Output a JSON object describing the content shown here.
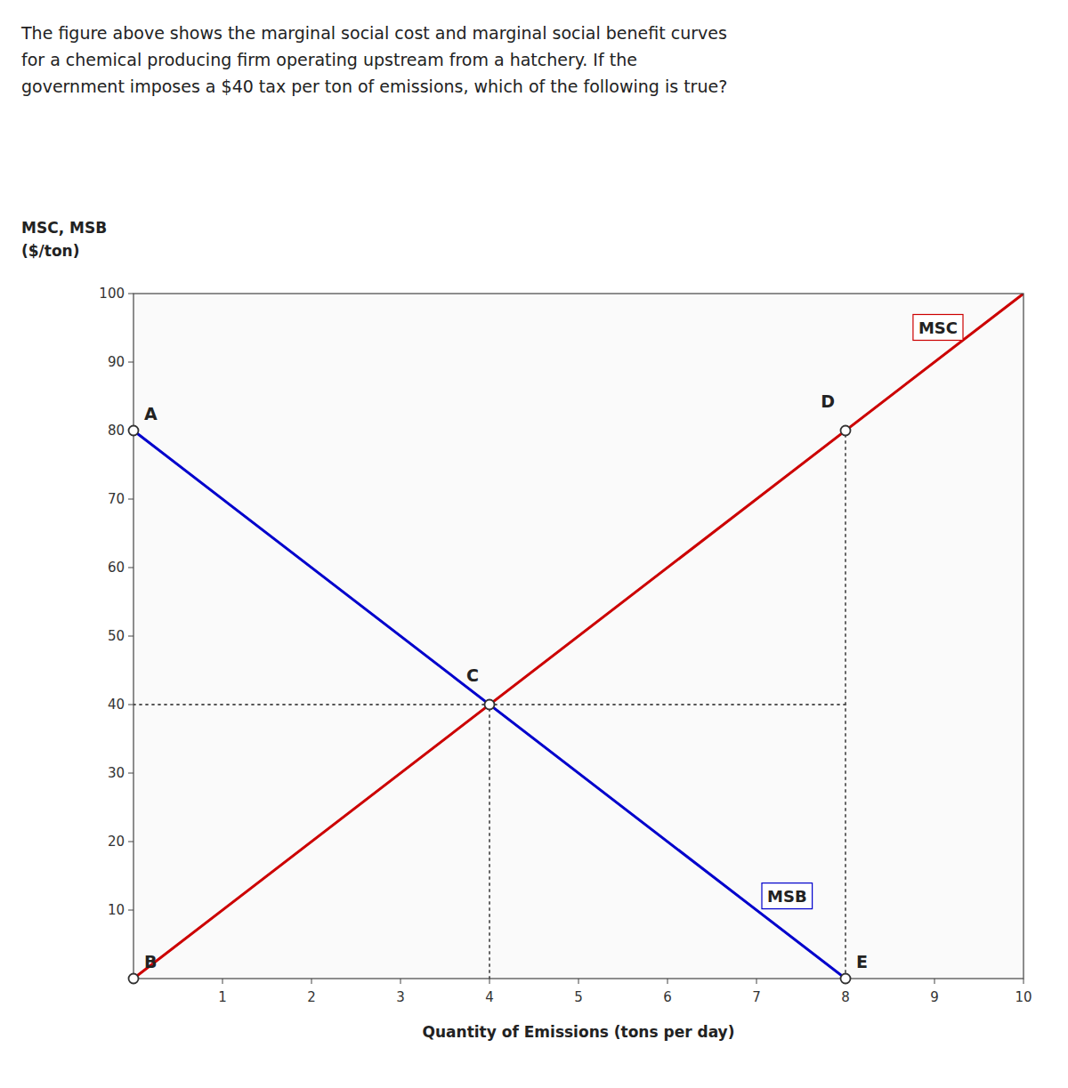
{
  "chart_data": {
    "type": "line",
    "title": [
      "The figure above shows the marginal social cost and marginal social benefit curves",
      "for a chemical producing firm operating upstream from a hatchery. If the",
      "government imposes a $40 tax per ton of emissions, which of the following is true?"
    ],
    "ylabel": [
      "MSC, MSB",
      "($/ton)"
    ],
    "xlabel": "Quantity of Emissions (tons per day)",
    "xlim": [
      0,
      10
    ],
    "ylim": [
      0,
      100
    ],
    "xticks": [
      1,
      2,
      3,
      4,
      5,
      6,
      7,
      8,
      9,
      10
    ],
    "yticks": [
      10,
      20,
      30,
      40,
      50,
      60,
      70,
      80,
      90,
      100
    ],
    "grid": false,
    "series": [
      {
        "name": "MSB",
        "color": "#0000cc",
        "x": [
          0,
          8
        ],
        "values": [
          80,
          0
        ]
      },
      {
        "name": "MSC",
        "color": "#cc0000",
        "x": [
          0,
          10
        ],
        "values": [
          0,
          100
        ]
      }
    ],
    "annotations": [
      {
        "type": "line",
        "line_style": "dotted",
        "x": [
          0,
          8
        ],
        "y": [
          40,
          40
        ]
      },
      {
        "type": "line",
        "line_style": "dotted",
        "x": [
          4,
          4
        ],
        "y": [
          0,
          40
        ]
      },
      {
        "type": "line",
        "line_style": "dotted",
        "x": [
          8,
          8
        ],
        "y": [
          0,
          80
        ]
      },
      {
        "type": "point",
        "text": "A",
        "x": 0,
        "y": 80
      },
      {
        "type": "point",
        "text": "B",
        "x": 0,
        "y": 0
      },
      {
        "type": "point",
        "text": "C",
        "x": 4,
        "y": 40
      },
      {
        "type": "point",
        "text": "D",
        "x": 8,
        "y": 80
      },
      {
        "type": "point",
        "text": "E",
        "x": 8,
        "y": 0
      }
    ]
  }
}
